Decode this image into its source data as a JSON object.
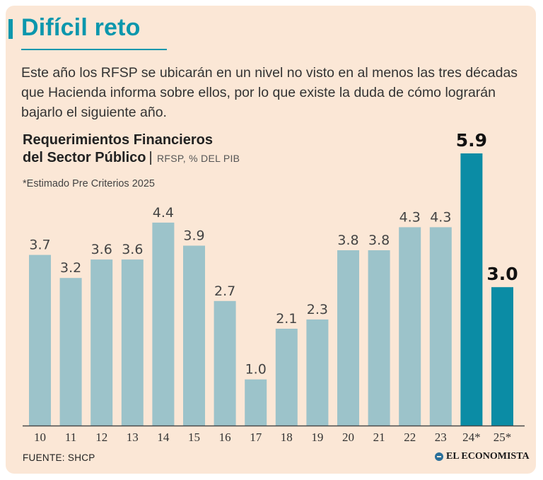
{
  "header": {
    "title": "Difícil reto",
    "intro": "Este año los RFSP se ubicarán en un nivel no visto en al menos las tres décadas que Hacienda informa sobre ellos, por lo que existe la duda de cómo lograrán bajarlo el siguiente año."
  },
  "chart_data": {
    "type": "bar",
    "title_line1": "Requerimientos Financieros",
    "title_line2": "del Sector Público",
    "units": "RFSP, % DEL PIB",
    "note": "*Estimado Pre Criterios 2025",
    "categories": [
      "10",
      "11",
      "12",
      "13",
      "14",
      "15",
      "16",
      "17",
      "18",
      "19",
      "20",
      "21",
      "22",
      "23",
      "24*",
      "25*"
    ],
    "values": [
      3.7,
      3.2,
      3.6,
      3.6,
      4.4,
      3.9,
      2.7,
      1.0,
      2.1,
      2.3,
      3.8,
      3.8,
      4.3,
      4.3,
      5.9,
      3.0
    ],
    "labels": [
      "3.7",
      "3.2",
      "3.6",
      "3.6",
      "4.4",
      "3.9",
      "2.7",
      "1.0",
      "2.1",
      "2.3",
      "3.8",
      "3.8",
      "4.3",
      "4.3",
      "5.9",
      "3.0"
    ],
    "highlighted": [
      false,
      false,
      false,
      false,
      false,
      false,
      false,
      false,
      false,
      false,
      false,
      false,
      false,
      false,
      true,
      true
    ],
    "ylim": [
      0,
      5.9
    ],
    "colors": {
      "regular": "#9cc3ca",
      "highlight": "#0b8ca5",
      "axis": "#4a4a4a"
    }
  },
  "footer": {
    "source": "FUENTE: SHCP",
    "brand": "EL ECONOMISTA"
  }
}
